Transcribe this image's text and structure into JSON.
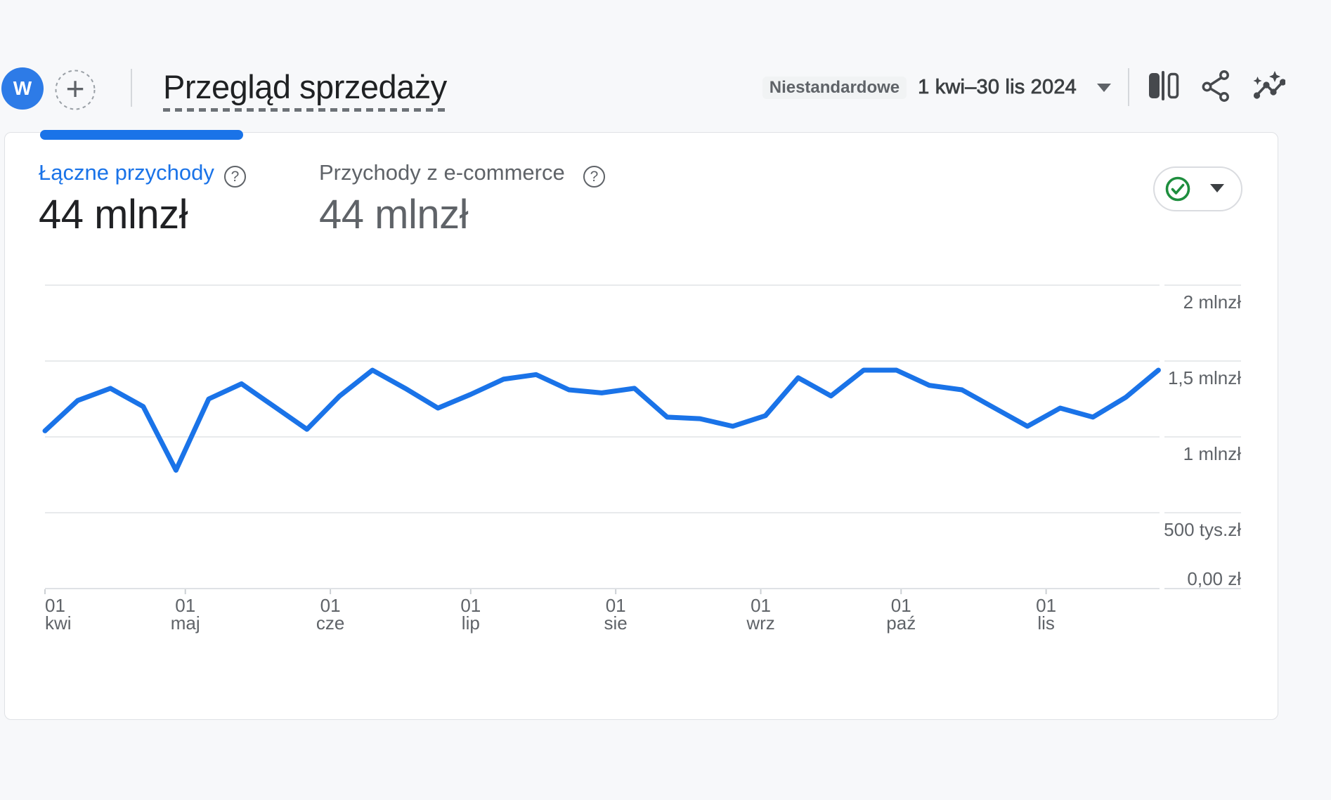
{
  "header": {
    "avatar_letter": "W",
    "title": "Przegląd sprzedaży",
    "comparison_badge": "Niestandardowe",
    "date_range": "1 kwi–30 lis 2024",
    "plus_glyph": "+"
  },
  "metrics": [
    {
      "label": "Łączne przychody",
      "value": "44 mlnzł",
      "help_glyph": "?",
      "selected": true
    },
    {
      "label": "Przychody z e-commerce",
      "value": "44 mlnzł",
      "help_glyph": "?",
      "selected": false
    }
  ],
  "chart_data": {
    "type": "line",
    "series": [
      {
        "name": "Łączne przychody",
        "x_week_start": [
          "2024-04-01",
          "2024-04-08",
          "2024-04-15",
          "2024-04-22",
          "2024-04-29",
          "2024-05-06",
          "2024-05-13",
          "2024-05-20",
          "2024-05-27",
          "2024-06-03",
          "2024-06-10",
          "2024-06-17",
          "2024-06-24",
          "2024-07-01",
          "2024-07-08",
          "2024-07-15",
          "2024-07-22",
          "2024-07-29",
          "2024-08-05",
          "2024-08-12",
          "2024-08-19",
          "2024-08-26",
          "2024-09-02",
          "2024-09-09",
          "2024-09-16",
          "2024-09-23",
          "2024-09-30",
          "2024-10-07",
          "2024-10-14",
          "2024-10-21",
          "2024-10-28",
          "2024-11-04",
          "2024-11-11",
          "2024-11-18",
          "2024-11-25"
        ],
        "values_mln_zl": [
          1.04,
          1.24,
          1.32,
          1.2,
          0.78,
          1.25,
          1.35,
          1.2,
          1.05,
          1.27,
          1.44,
          1.32,
          1.19,
          1.28,
          1.38,
          1.41,
          1.31,
          1.29,
          1.32,
          1.13,
          1.12,
          1.07,
          1.14,
          1.39,
          1.27,
          1.44,
          1.44,
          1.34,
          1.31,
          1.19,
          1.07,
          1.19,
          1.13,
          1.26,
          1.44
        ]
      }
    ],
    "ylabel": "",
    "xlabel": "",
    "ylim_mln": [
      0,
      2
    ],
    "grid": true,
    "legend": false,
    "line_color": "#1a73e8",
    "y_ticks": [
      {
        "value_mln": 2,
        "label": "2 mlnzł"
      },
      {
        "value_mln": 1.5,
        "label": "1,5 mlnzł"
      },
      {
        "value_mln": 1,
        "label": "1 mlnzł"
      },
      {
        "value_mln": 0.5,
        "label": "500 tys.zł"
      },
      {
        "value_mln": 0,
        "label": "0,00 zł"
      }
    ],
    "x_ticks": [
      {
        "day": 0,
        "line1": "01",
        "line2": "kwi"
      },
      {
        "day": 30,
        "line1": "01",
        "line2": "maj"
      },
      {
        "day": 61,
        "line1": "01",
        "line2": "cze"
      },
      {
        "day": 91,
        "line1": "01",
        "line2": "lip"
      },
      {
        "day": 122,
        "line1": "01",
        "line2": "sie"
      },
      {
        "day": 153,
        "line1": "01",
        "line2": "wrz"
      },
      {
        "day": 183,
        "line1": "01",
        "line2": "paź"
      },
      {
        "day": 214,
        "line1": "01",
        "line2": "lis"
      }
    ]
  },
  "colors": {
    "accent_blue": "#1a73e8",
    "avatar_blue": "#2d7be7",
    "status_green": "#1e8e3e",
    "background": "#f7f8fa",
    "grid": "#e8eaec"
  }
}
